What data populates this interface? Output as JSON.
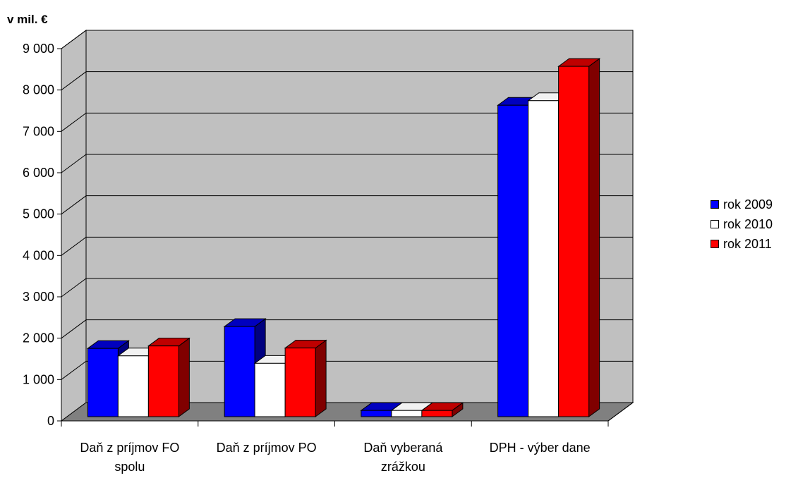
{
  "chart_data": {
    "type": "bar",
    "y_unit_label": "v mil. €",
    "categories": [
      [
        "Daň z príjmov FO",
        "spolu"
      ],
      [
        "Daň z príjmov PO"
      ],
      [
        "Daň vyberaná",
        "zrážkou"
      ],
      [
        "DPH - výber dane"
      ]
    ],
    "series": [
      {
        "name": "rok 2009",
        "color": "#0000ff",
        "values": [
          1650,
          2180,
          150,
          7530
        ]
      },
      {
        "name": "rok 2010",
        "color": "#ffffff",
        "values": [
          1470,
          1290,
          150,
          7640
        ]
      },
      {
        "name": "rok 2011",
        "color": "#ff0000",
        "values": [
          1710,
          1660,
          150,
          8470
        ]
      }
    ],
    "ylim": [
      0,
      9000
    ],
    "yticks": [
      0,
      1000,
      2000,
      3000,
      4000,
      5000,
      6000,
      7000,
      8000,
      9000
    ],
    "ytick_labels": [
      "0",
      "1 000",
      "2 000",
      "3 000",
      "4 000",
      "5 000",
      "6 000",
      "7 000",
      "8 000",
      "9 000"
    ],
    "grid": true,
    "legend_position": "right",
    "wall_color": "#c0c0c0",
    "floor_color": "#808080"
  }
}
